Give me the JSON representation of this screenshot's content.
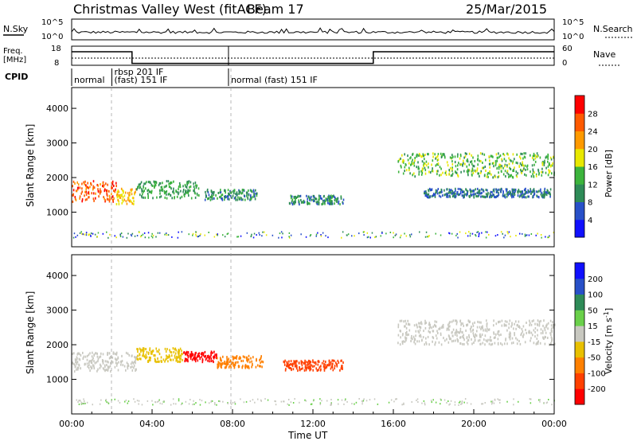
{
  "header": {
    "station": "Christmas Valley West (fitACF)",
    "beam": "Beam 17",
    "date": "25/Mar/2015"
  },
  "status_panels": {
    "nsky_label": "N.Sky",
    "nsky_ticks": [
      "10^5",
      "10^0"
    ],
    "nsearch_label": "N.Search",
    "nsearch_ticks": [
      "10^5",
      "10^0"
    ],
    "freq_label": "Freq.",
    "freq_unit": "[MHz]",
    "freq_ticks": [
      "18",
      "8"
    ],
    "nave_label": "Nave",
    "nave_ticks": [
      "60",
      "0"
    ],
    "cpid_label": "CPID",
    "cpid_segments": [
      {
        "start_hour": 0.0,
        "end_hour": 2.0,
        "text": "normal"
      },
      {
        "start_hour": 2.0,
        "end_hour": 3.0,
        "text": "rbsp 201 IF"
      },
      {
        "start_hour": 2.0,
        "end_hour": 7.8,
        "text": "(fast) 151 IF"
      },
      {
        "start_hour": 7.8,
        "end_hour": 24.0,
        "text": "normal (fast) 151 IF"
      }
    ],
    "freq_series": [
      {
        "from": 0,
        "to": 3,
        "mhz": 16.5
      },
      {
        "from": 3,
        "to": 15,
        "mhz": 9.2
      },
      {
        "from": 15,
        "to": 24,
        "mhz": 16.5
      }
    ]
  },
  "chart_data": [
    {
      "type": "heatmap",
      "name": "power",
      "ylabel": "Slant Range [km]",
      "ylim": [
        0,
        4600
      ],
      "yticks": [
        1000,
        2000,
        3000,
        4000
      ],
      "xlim": [
        0,
        24
      ],
      "colorbar_label": "Power [dB]",
      "colorbar_ticks": [
        4,
        8,
        12,
        16,
        20,
        24,
        28
      ],
      "colorbar_range": [
        0,
        32
      ],
      "colors": [
        "#1010ff",
        "#2850c8",
        "#2e8b57",
        "#3cb43c",
        "#e8e800",
        "#ff9a00",
        "#ff5a00",
        "#ff0000"
      ],
      "features": [
        {
          "from": 0.0,
          "to": 2.2,
          "center_km": 1600,
          "width_km": 600,
          "level": 26
        },
        {
          "from": 2.2,
          "to": 3.2,
          "center_km": 1450,
          "width_km": 450,
          "level": 20
        },
        {
          "from": 3.2,
          "to": 6.3,
          "center_km": 1650,
          "width_km": 500,
          "level": 12
        },
        {
          "from": 6.6,
          "to": 9.2,
          "center_km": 1500,
          "width_km": 300,
          "level": 10
        },
        {
          "from": 10.8,
          "to": 13.5,
          "center_km": 1350,
          "width_km": 250,
          "level": 10
        },
        {
          "from": 16.2,
          "to": 24.0,
          "center_km": 2350,
          "width_km": 700,
          "level": 14
        },
        {
          "from": 17.5,
          "to": 23.8,
          "center_km": 1550,
          "width_km": 250,
          "level": 8
        }
      ]
    },
    {
      "type": "heatmap",
      "name": "velocity",
      "ylabel": "Slant Range [km]",
      "ylim": [
        0,
        4600
      ],
      "yticks": [
        1000,
        2000,
        3000,
        4000
      ],
      "xlim": [
        0,
        24
      ],
      "xticks": [
        "00:00",
        "04:00",
        "08:00",
        "12:00",
        "16:00",
        "20:00",
        "00:00"
      ],
      "xlabel": "Time UT",
      "colorbar_label": "Velocity [m s",
      "colorbar_label_sup": "-1",
      "colorbar_label_close": "]",
      "colorbar_ticks": [
        200,
        100,
        50,
        15,
        -15,
        -50,
        -100,
        -200
      ],
      "colors": [
        "#1010ff",
        "#2850c8",
        "#2e8b57",
        "#6ad04a",
        "#c8c8c0",
        "#e8c000",
        "#ff8000",
        "#ff4000",
        "#ff0000"
      ],
      "features": [
        {
          "from": 0.0,
          "to": 3.2,
          "center_km": 1500,
          "width_km": 550,
          "velocity": 0
        },
        {
          "from": 3.2,
          "to": 5.5,
          "center_km": 1700,
          "width_km": 400,
          "velocity": -40
        },
        {
          "from": 5.5,
          "to": 7.2,
          "center_km": 1650,
          "width_km": 300,
          "velocity": -200
        },
        {
          "from": 7.2,
          "to": 9.5,
          "center_km": 1500,
          "width_km": 350,
          "velocity": -60
        },
        {
          "from": 10.5,
          "to": 13.5,
          "center_km": 1400,
          "width_km": 300,
          "velocity": -120
        },
        {
          "from": 16.2,
          "to": 24.0,
          "center_km": 2350,
          "width_km": 700,
          "velocity": 0
        }
      ]
    }
  ]
}
